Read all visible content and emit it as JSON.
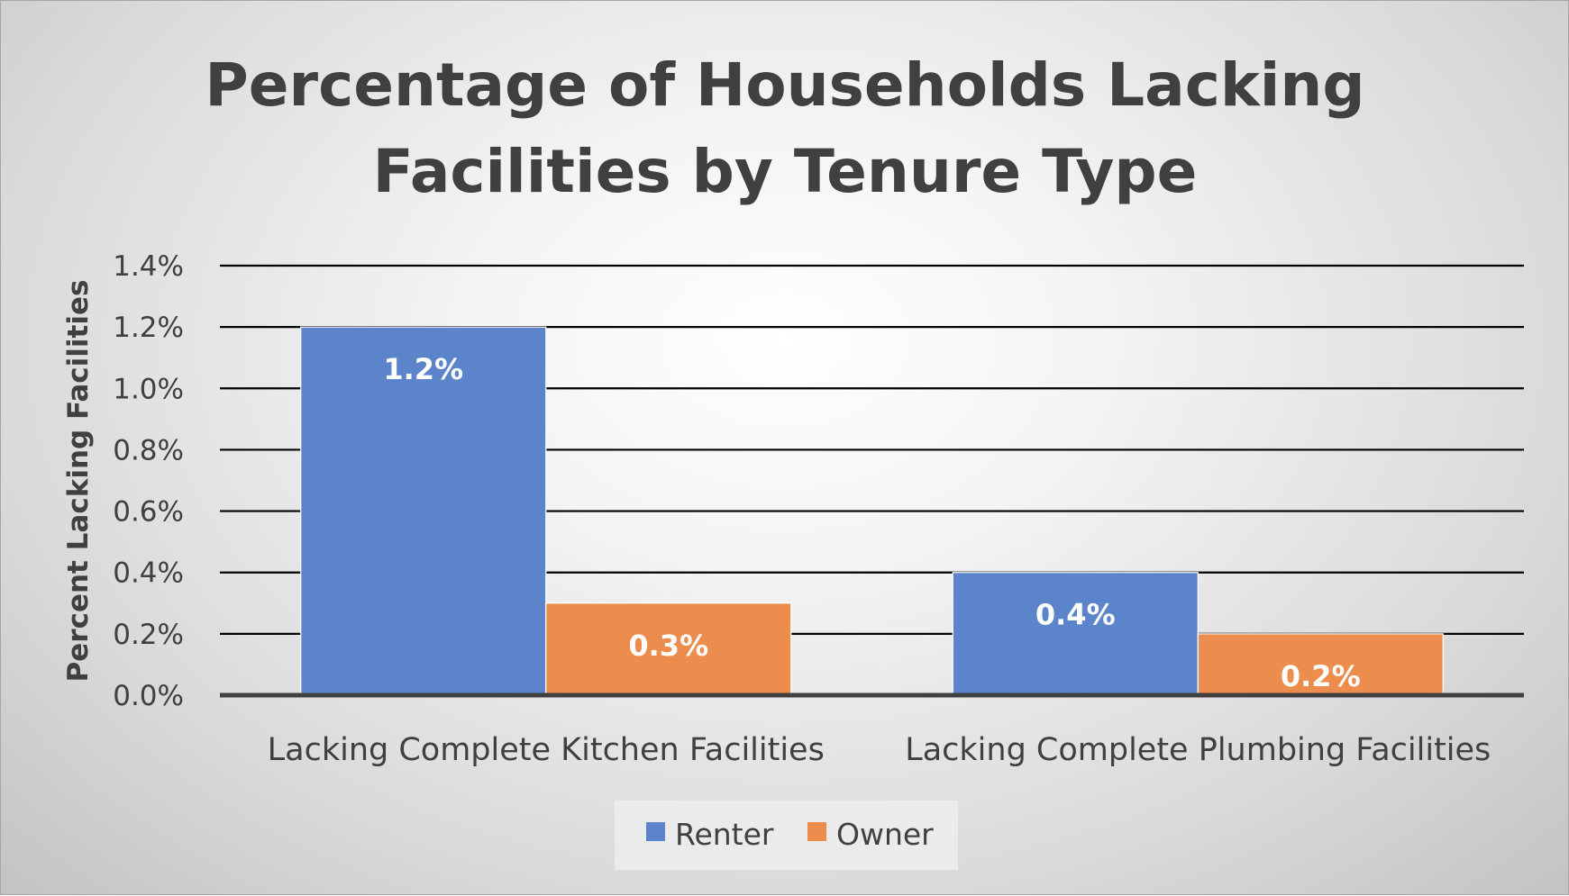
{
  "chart_data": {
    "type": "bar",
    "title_lines": [
      "Percentage of Households Lacking",
      "Facilities by Tenure Type"
    ],
    "ylabel": "Percent Lacking Facilities",
    "xlabel": "",
    "categories": [
      "Lacking Complete Kitchen Facilities",
      "Lacking Complete Plumbing Facilities"
    ],
    "series": [
      {
        "name": "Renter",
        "values": [
          1.2,
          0.4
        ],
        "labels": [
          "1.2%",
          "0.4%"
        ],
        "color": "#5b84cb"
      },
      {
        "name": "Owner",
        "values": [
          0.3,
          0.2
        ],
        "labels": [
          "0.3%",
          "0.2%"
        ],
        "color": "#ed8d4d"
      }
    ],
    "ylim": [
      0,
      1.4
    ],
    "y_ticks": [
      0,
      0.2,
      0.4,
      0.6,
      0.8,
      1.0,
      1.2,
      1.4
    ],
    "y_tick_labels": [
      "0.0%",
      "0.2%",
      "0.4%",
      "0.6%",
      "0.8%",
      "1.0%",
      "1.2%",
      "1.4%"
    ],
    "grid": true,
    "gridline_color": "#000000",
    "legend_position": "bottom",
    "background": "radial-gradient gray"
  }
}
